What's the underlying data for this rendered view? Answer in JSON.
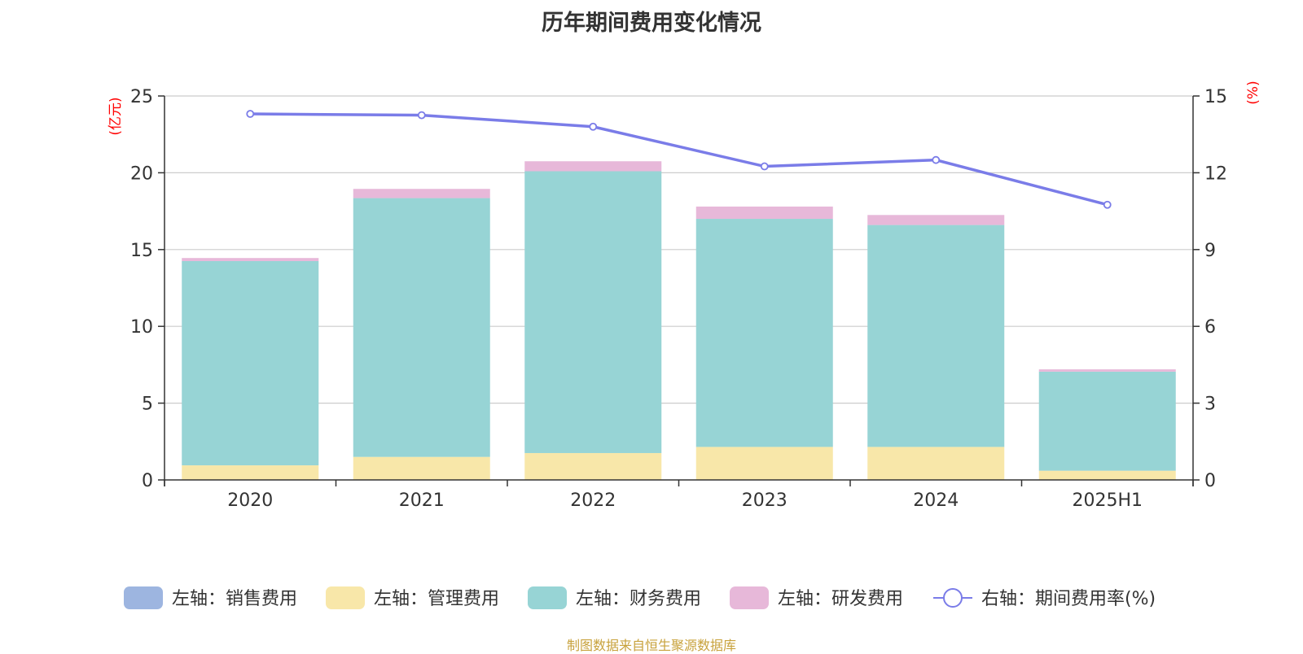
{
  "chart_data": {
    "type": "bar",
    "title": "历年期间费用变化情况",
    "categories": [
      "2020",
      "2021",
      "2022",
      "2023",
      "2024",
      "2025H1"
    ],
    "left_axis": {
      "unit": "(亿元)",
      "min": 0,
      "max": 25,
      "ticks": [
        "0",
        "5",
        "10",
        "15",
        "20",
        "25"
      ]
    },
    "right_axis": {
      "unit": "(%)",
      "min": 0,
      "max": 15,
      "ticks": [
        "0",
        "3",
        "6",
        "9",
        "12",
        "15"
      ]
    },
    "grid": true,
    "legend_position": "bottom",
    "series": [
      {
        "name": "左轴：销售费用",
        "type": "bar",
        "axis": "left",
        "color": "#9db5e0",
        "values": [
          0,
          0,
          0,
          0,
          0,
          0
        ]
      },
      {
        "name": "左轴：管理费用",
        "type": "bar",
        "axis": "left",
        "color": "#f8e7a9",
        "values": [
          0.95,
          1.5,
          1.75,
          2.15,
          2.15,
          0.6
        ]
      },
      {
        "name": "左轴：财务费用",
        "type": "bar",
        "axis": "left",
        "color": "#97d4d5",
        "values": [
          13.3,
          16.85,
          18.35,
          14.85,
          14.45,
          6.45
        ]
      },
      {
        "name": "左轴：研发费用",
        "type": "bar",
        "axis": "left",
        "color": "#e7b8d9",
        "values": [
          0.2,
          0.6,
          0.65,
          0.8,
          0.65,
          0.15
        ]
      },
      {
        "name": "右轴：期间费用率(%)",
        "type": "line",
        "axis": "right",
        "color": "#7a7ce8",
        "values": [
          14.3,
          14.25,
          13.8,
          12.25,
          12.5,
          10.75
        ]
      }
    ]
  },
  "source": {
    "text": "制图数据来自恒生聚源数据库",
    "color": "#c8a23c"
  },
  "colors": {
    "axis_unit": "#ff0000",
    "grid": "#cccccc",
    "axis_line": "#333333"
  }
}
